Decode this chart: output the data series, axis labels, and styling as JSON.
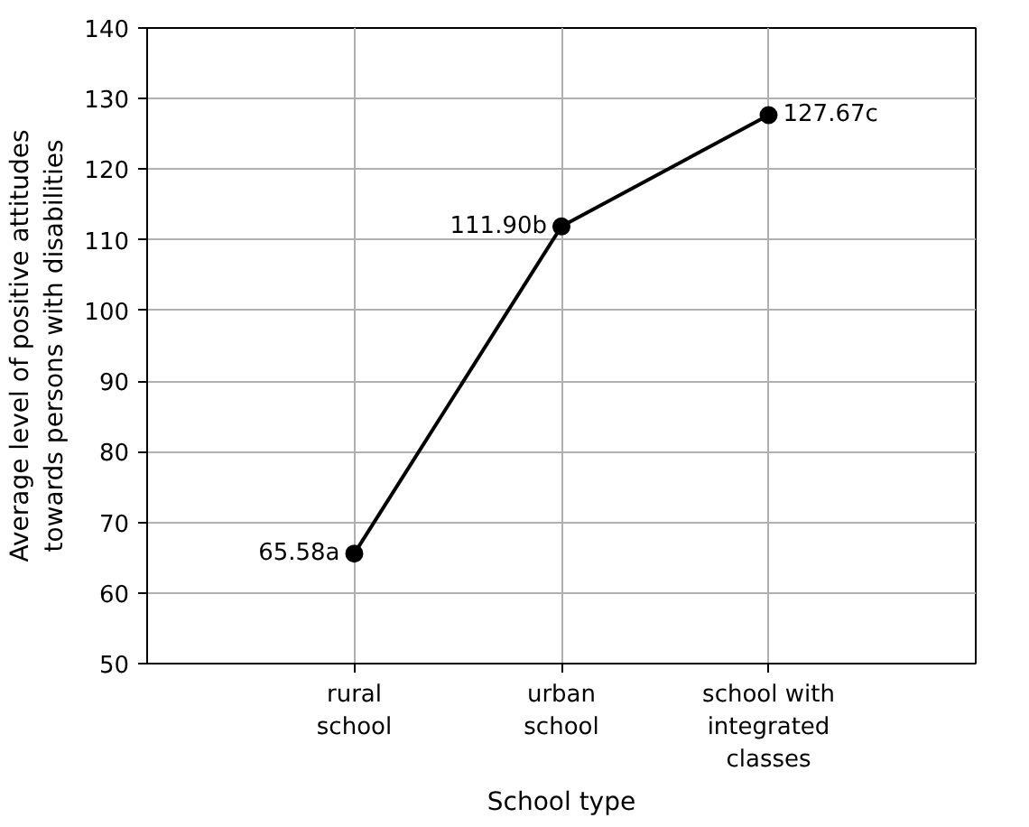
{
  "chart_data": {
    "type": "line",
    "xlabel": "School type",
    "ylabel": "Average level of positive attitudes towards persons with disabilities",
    "categories": [
      "rural school",
      "urban school",
      "school with integrated classes"
    ],
    "values": [
      65.58,
      111.9,
      127.67
    ],
    "value_labels": [
      "65.58a",
      "111.90b",
      "127.67c"
    ],
    "color": "#000000",
    "marker": "circle",
    "line_style": "solid",
    "ylim": [
      50,
      140
    ],
    "yticks": [
      50,
      60,
      70,
      80,
      90,
      100,
      110,
      120,
      130,
      140
    ],
    "grid": true
  }
}
